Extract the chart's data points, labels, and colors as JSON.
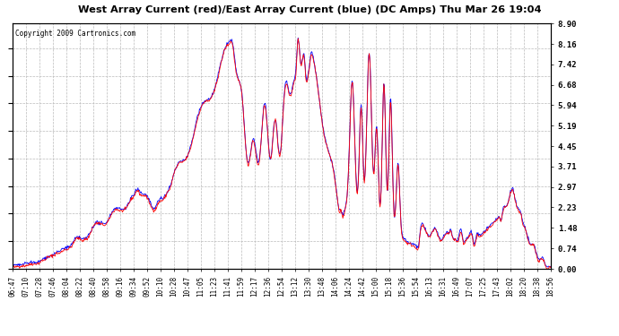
{
  "title": "West Array Current (red)/East Array Current (blue) (DC Amps) Thu Mar 26 19:04",
  "copyright": "Copyright 2009 Cartronics.com",
  "ylabel_right": [
    "0.00",
    "0.74",
    "1.48",
    "2.23",
    "2.97",
    "3.71",
    "4.45",
    "5.19",
    "5.94",
    "6.68",
    "7.42",
    "8.16",
    "8.90"
  ],
  "ylim": [
    0.0,
    8.9
  ],
  "bg_color": "#ffffff",
  "grid_color": "#bbbbbb",
  "red_color": "#ff0000",
  "blue_color": "#0000ff",
  "title_color": "#000000",
  "x_tick_labels": [
    "06:47",
    "07:10",
    "07:28",
    "07:46",
    "08:04",
    "08:22",
    "08:40",
    "08:58",
    "09:16",
    "09:34",
    "09:52",
    "10:10",
    "10:28",
    "10:47",
    "11:05",
    "11:23",
    "11:41",
    "11:59",
    "12:17",
    "12:36",
    "12:54",
    "13:12",
    "13:30",
    "13:48",
    "14:06",
    "14:24",
    "14:42",
    "15:00",
    "15:18",
    "15:36",
    "15:54",
    "16:13",
    "16:31",
    "16:49",
    "17:07",
    "17:25",
    "17:43",
    "18:02",
    "18:20",
    "18:38",
    "18:56"
  ]
}
